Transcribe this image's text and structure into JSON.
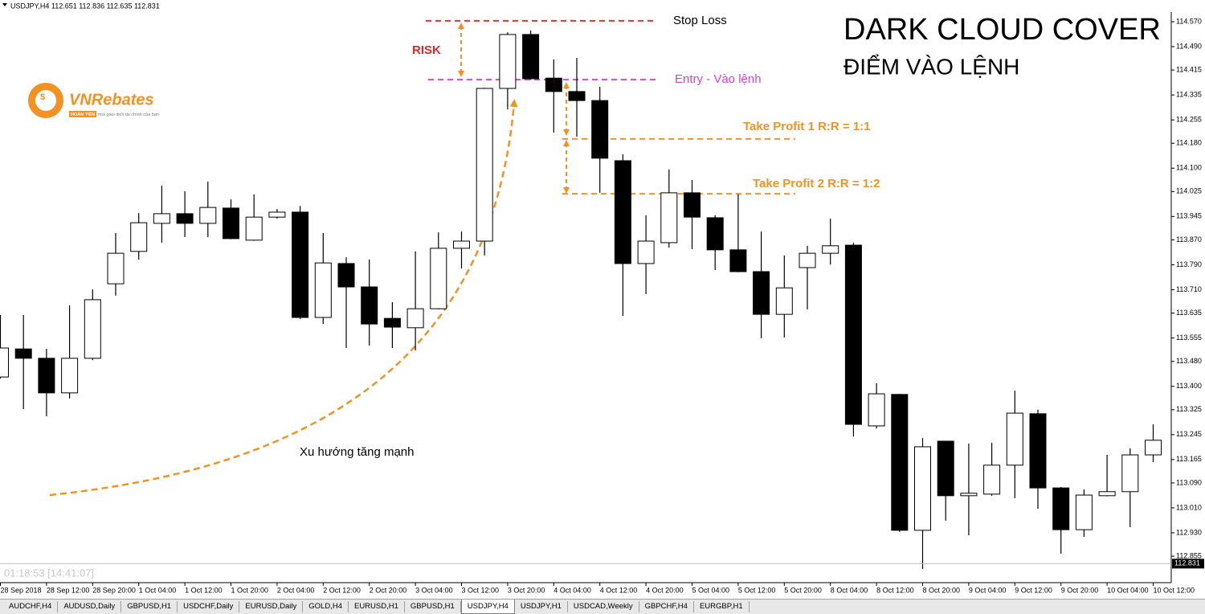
{
  "header": "USDJPY,H4  112.651 112.836 112.635 112.831",
  "timer": "01:18:53 [14:41:07]",
  "logo": {
    "name": "VNRebates",
    "tag": "HOÀN TIỀN",
    "slogan": "mọi giao dịch tài chính của bạn"
  },
  "chart_data": {
    "type": "candlestick",
    "title": "DARK CLOUD COVER",
    "subtitle": "ĐIỂM VÀO LỆNH",
    "trend_label": "Xu hướng tăng mạnh",
    "risk_label": "RISK",
    "up_color": "#ffffff",
    "down_color": "#000000",
    "categories": [
      "28 Sep 2018",
      null,
      "28 Sep 12:00",
      null,
      "28 Sep 20:00",
      null,
      "1 Oct 04:00",
      null,
      "1 Oct 12:00",
      null,
      "1 Oct 20:00",
      null,
      "2 Oct 04:00",
      null,
      "2 Oct 12:00",
      null,
      "2 Oct 20:00",
      null,
      "3 Oct 04:00",
      null,
      "3 Oct 12:00",
      null,
      "3 Oct 20:00",
      null,
      "4 Oct 04:00",
      null,
      "4 Oct 12:00",
      null,
      "4 Oct 20:00",
      null,
      "5 Oct 04:00",
      null,
      "5 Oct 12:00",
      null,
      "5 Oct 20:00",
      null,
      "8 Oct 04:00",
      null,
      "8 Oct 12:00",
      null,
      "8 Oct 20:00",
      null,
      "9 Oct 04:00",
      null,
      "9 Oct 12:00",
      null,
      "9 Oct 20:00",
      null,
      "10 Oct 04:00",
      null,
      "10 Oct 12:00"
    ],
    "open": [
      113.43,
      113.52,
      113.49,
      113.379,
      113.49,
      113.729,
      113.833,
      113.923,
      113.954,
      113.923,
      113.972,
      113.869,
      113.943,
      113.959,
      113.621,
      113.794,
      113.719,
      113.618,
      113.588,
      113.649,
      113.843,
      113.866,
      114.356,
      114.529,
      114.389,
      114.346,
      114.317,
      114.124,
      113.794,
      113.861,
      114.021,
      113.941,
      113.838,
      113.768,
      113.631,
      113.781,
      113.827,
      113.853,
      113.273,
      113.374,
      112.938,
      113.224,
      113.049,
      113.054,
      113.147,
      113.312,
      113.074,
      112.94,
      113.049,
      113.062,
      113.18
    ],
    "high": [
      113.629,
      113.629,
      113.52,
      113.66,
      113.711,
      113.892,
      113.956,
      114.044,
      114.026,
      114.057,
      114.0,
      114.016,
      113.969,
      113.979,
      113.892,
      113.814,
      113.807,
      113.67,
      113.833,
      113.894,
      113.897,
      114.358,
      114.536,
      114.542,
      114.449,
      114.454,
      114.361,
      114.145,
      113.949,
      114.096,
      114.062,
      113.949,
      114.016,
      113.897,
      113.82,
      113.851,
      113.938,
      113.861,
      113.41,
      113.376,
      113.234,
      113.225,
      113.216,
      113.219,
      113.386,
      113.325,
      113.077,
      113.069,
      113.18,
      113.201,
      113.278
    ],
    "low": [
      113.425,
      113.327,
      113.304,
      113.361,
      113.484,
      113.691,
      113.807,
      113.861,
      113.879,
      113.879,
      113.872,
      113.867,
      113.938,
      113.616,
      113.6,
      113.523,
      113.531,
      113.523,
      113.515,
      113.647,
      113.778,
      113.82,
      114.289,
      114.384,
      114.214,
      114.201,
      114.021,
      113.626,
      113.696,
      113.845,
      113.84,
      113.773,
      113.766,
      113.554,
      113.557,
      113.647,
      113.791,
      113.239,
      113.265,
      112.933,
      112.814,
      112.969,
      112.922,
      113.049,
      113.041,
      113.007,
      112.863,
      112.917,
      113.047,
      112.948,
      113.157
    ],
    "close": [
      113.523,
      113.49,
      113.379,
      113.49,
      113.678,
      113.827,
      113.925,
      113.954,
      113.923,
      113.974,
      113.874,
      113.943,
      113.959,
      113.621,
      113.796,
      113.719,
      113.6,
      113.59,
      113.649,
      113.843,
      113.866,
      114.356,
      114.529,
      114.387,
      114.346,
      114.317,
      114.132,
      113.794,
      113.866,
      114.021,
      113.943,
      113.838,
      113.768,
      113.631,
      113.716,
      113.827,
      113.851,
      113.278,
      113.376,
      112.938,
      113.206,
      113.049,
      113.057,
      113.147,
      113.314,
      113.074,
      112.94,
      113.051,
      113.062,
      113.18,
      113.227
    ],
    "ylim": [
      112.77,
      114.601
    ],
    "yticks": [
      {
        "value": 114.57,
        "label": "114.570"
      },
      {
        "value": 114.49,
        "label": "114.490"
      },
      114.415,
      114.335,
      114.255,
      {
        "value": 114.18,
        "label": "114.180"
      },
      {
        "value": 114.1,
        "label": "114.100"
      },
      114.025,
      113.945,
      {
        "value": 113.87,
        "label": "113.870"
      },
      {
        "value": 113.79,
        "label": "113.790"
      },
      {
        "value": 113.71,
        "label": "113.710"
      },
      113.635,
      113.555,
      {
        "value": 113.48,
        "label": "113.480"
      },
      {
        "value": 113.4,
        "label": "113.400"
      },
      113.325,
      113.245,
      113.165,
      {
        "value": 113.09,
        "label": "113.090"
      },
      {
        "value": 113.01,
        "label": "113.010"
      },
      {
        "value": 112.93,
        "label": "112.930"
      },
      112.855
    ],
    "current_price": 112.831,
    "levels": [
      {
        "label": "Stop Loss",
        "price": 114.573,
        "line_color": "#e8322b",
        "text_color": "#000000"
      },
      {
        "label": "Entry - Vào lệnh",
        "price": 114.384,
        "line_color": "#e040e0",
        "text_color": "#d63fd6"
      },
      {
        "label": "Take Profit 1 R:R = 1:1",
        "price": 114.194,
        "line_color": "#f39222",
        "text_color": "#f39222"
      },
      {
        "label": "Take Profit 2 R:R = 1:2",
        "price": 114.018,
        "line_color": "#f39222",
        "text_color": "#f39222"
      }
    ]
  },
  "tabs": [
    "AUDCHF,H4",
    "AUDUSD,Daily",
    "GBPUSD,H1",
    "USDCHF,Daily",
    "EURUSD,Daily",
    "GOLD,H4",
    "EURUSD,H1",
    "GBPUSD,H1",
    "USDJPY,H4",
    "USDJPY,H1",
    "USDCAD,Weekly",
    "GBPCHF,H4",
    "EURGBP,H1"
  ],
  "active_tab": 8
}
